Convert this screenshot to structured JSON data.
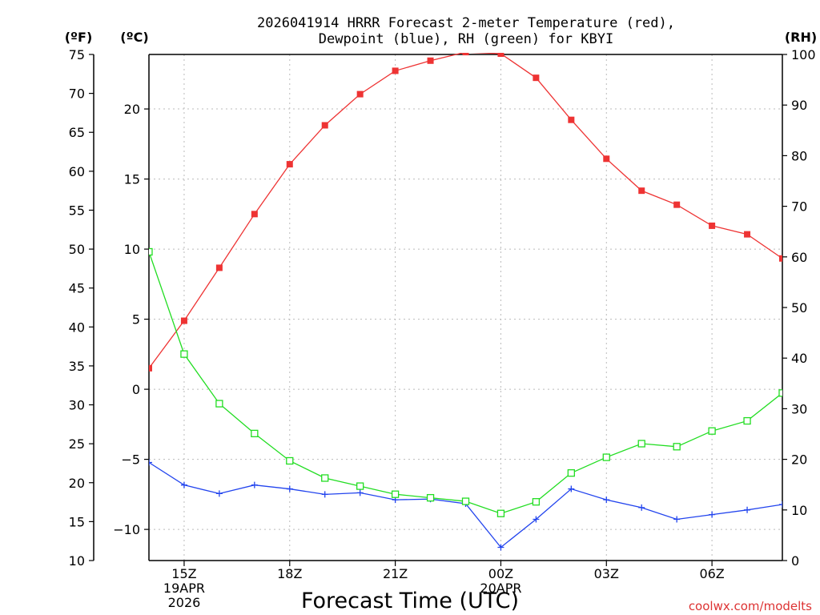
{
  "chart_data": {
    "type": "line",
    "title_line1": "2026041914 HRRR Forecast 2-meter Temperature (red),",
    "title_line2": "Dewpoint (blue), RH (green) for KBYI",
    "xlabel": "Forecast Time (UTC)",
    "watermark": "coolwx.com/modelts",
    "left_outer_unit": "(ºF)",
    "left_inner_unit": "(ºC)",
    "right_unit": "(RH)",
    "x_range_hours": [
      -1,
      17
    ],
    "x_ticks": [
      {
        "hour": 0,
        "label": "15Z",
        "sub1": "19APR",
        "sub2": "2026"
      },
      {
        "hour": 3,
        "label": "18Z",
        "sub1": "",
        "sub2": ""
      },
      {
        "hour": 6,
        "label": "21Z",
        "sub1": "",
        "sub2": ""
      },
      {
        "hour": 9,
        "label": "00Z",
        "sub1": "20APR",
        "sub2": ""
      },
      {
        "hour": 12,
        "label": "03Z",
        "sub1": "",
        "sub2": ""
      },
      {
        "hour": 15,
        "label": "06Z",
        "sub1": "",
        "sub2": ""
      }
    ],
    "temp_f_axis": {
      "range": [
        10,
        75
      ],
      "ticks": [
        10,
        15,
        20,
        25,
        30,
        35,
        40,
        45,
        50,
        55,
        60,
        65,
        70,
        75
      ]
    },
    "temp_c_axis": {
      "ticks": [
        -10,
        -5,
        0,
        5,
        10,
        15,
        20
      ]
    },
    "rh_axis": {
      "range": [
        0,
        100
      ],
      "ticks": [
        0,
        10,
        20,
        30,
        40,
        50,
        60,
        70,
        80,
        90,
        100
      ]
    },
    "hours": [
      -1,
      0,
      1,
      2,
      3,
      4,
      5,
      6,
      7,
      8,
      9,
      10,
      11,
      12,
      13,
      14,
      15,
      16,
      17
    ],
    "series": [
      {
        "name": "2-meter Temperature",
        "color": "#ee3333",
        "unit": "F",
        "marker": "filled-square",
        "values": [
          34.7,
          40.8,
          47.6,
          54.5,
          60.9,
          65.9,
          69.9,
          72.9,
          74.2,
          75.3,
          75.1,
          72.0,
          66.6,
          61.6,
          57.5,
          55.7,
          53.0,
          51.9,
          48.8
        ]
      },
      {
        "name": "Dewpoint",
        "color": "#2244ee",
        "unit": "F",
        "marker": "plus",
        "values": [
          22.6,
          19.7,
          18.6,
          19.7,
          19.2,
          18.5,
          18.7,
          17.8,
          17.9,
          17.3,
          11.7,
          15.3,
          19.2,
          17.8,
          16.8,
          15.3,
          15.9,
          16.5,
          17.2
        ]
      },
      {
        "name": "RH",
        "color": "#22dd22",
        "unit": "%",
        "marker": "open-square",
        "values": [
          61.0,
          40.8,
          31.0,
          25.1,
          19.7,
          16.3,
          14.7,
          13.1,
          12.4,
          11.7,
          9.3,
          11.6,
          17.3,
          20.4,
          23.1,
          22.5,
          25.6,
          27.6,
          33.1
        ]
      }
    ]
  }
}
